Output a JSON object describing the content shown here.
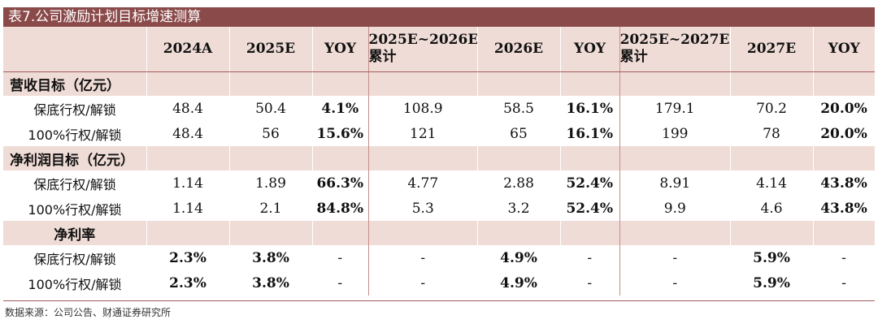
{
  "title": "表7.公司激励计划目标增速测算",
  "columns": [
    "",
    "2024A",
    "2025E",
    "YOY",
    "2025E~2026E\n累计",
    "2026E",
    "YOY",
    "2025E~2027E\n累计",
    "2027E",
    "YOY"
  ],
  "header": {
    "c1": "2024A",
    "c2": "2025E",
    "c3": "YOY",
    "c4_l1": "2025E~2026E",
    "c4_l2": "累计",
    "c5": "2026E",
    "c6": "YOY",
    "c7_l1": "2025E~2027E",
    "c7_l2": "累计",
    "c8": "2027E",
    "c9": "YOY"
  },
  "sections": [
    {
      "title": "营收目标（亿元）",
      "rows": [
        {
          "label": "保底行权/解锁",
          "cells": [
            "48.4",
            "50.4",
            "4.1%",
            "108.9",
            "58.5",
            "16.1%",
            "179.1",
            "70.2",
            "20.0%"
          ]
        },
        {
          "label": "100%行权/解锁",
          "cells": [
            "48.4",
            "56",
            "15.6%",
            "121",
            "65",
            "16.1%",
            "199",
            "78",
            "20.0%"
          ]
        }
      ]
    },
    {
      "title": "净利润目标（亿元）",
      "rows": [
        {
          "label": "保底行权/解锁",
          "cells": [
            "1.14",
            "1.89",
            "66.3%",
            "4.77",
            "2.88",
            "52.4%",
            "8.91",
            "4.14",
            "43.8%"
          ]
        },
        {
          "label": "100%行权/解锁",
          "cells": [
            "1.14",
            "2.1",
            "84.8%",
            "5.3",
            "3.2",
            "52.4%",
            "9.9",
            "4.6",
            "43.8%"
          ]
        }
      ]
    },
    {
      "title": "净利率",
      "rows": [
        {
          "label": "保底行权/解锁",
          "cells": [
            "2.3%",
            "3.8%",
            "-",
            "-",
            "4.9%",
            "-",
            "-",
            "5.9%",
            "-"
          ]
        },
        {
          "label": "100%行权/解锁",
          "cells": [
            "2.3%",
            "3.8%",
            "-",
            "-",
            "4.9%",
            "-",
            "-",
            "5.9%",
            "-"
          ]
        }
      ]
    }
  ],
  "source": "数据来源：公司公告、财通证券研究所",
  "colors": {
    "title_bar": "#8b4a4a",
    "header_fill": "#f0dcd6",
    "rule": "#a25c5c"
  }
}
